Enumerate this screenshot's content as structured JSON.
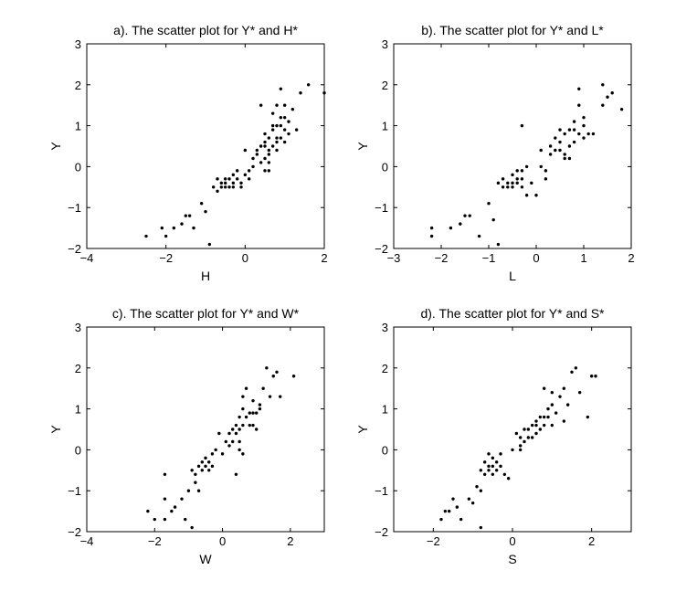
{
  "chart_data": [
    {
      "type": "scatter",
      "title": "a). The scatter plot for Y* and H*",
      "xlabel": "H",
      "ylabel": "Y",
      "xlim": [
        -4,
        2
      ],
      "ylim": [
        -2,
        3
      ],
      "xticks": [
        -4,
        -2,
        0,
        2
      ],
      "yticks": [
        -2,
        -1,
        0,
        1,
        2,
        3
      ],
      "grid": false,
      "x": [
        -2.5,
        -2.1,
        -2.0,
        -1.8,
        -1.6,
        -1.5,
        -1.4,
        -1.3,
        -1.1,
        -1.0,
        -0.9,
        -0.8,
        -0.7,
        -0.7,
        -0.6,
        -0.6,
        -0.5,
        -0.5,
        -0.5,
        -0.4,
        -0.4,
        -0.3,
        -0.3,
        -0.3,
        -0.2,
        -0.2,
        -0.1,
        -0.1,
        0.0,
        0.0,
        0.1,
        0.1,
        0.2,
        0.2,
        0.3,
        0.4,
        0.4,
        0.5,
        0.5,
        0.5,
        0.6,
        0.6,
        0.6,
        0.7,
        0.7,
        0.8,
        0.8,
        0.8,
        0.9,
        0.9,
        1.0,
        1.0,
        1.1,
        1.1,
        1.2,
        1.3,
        1.4,
        1.6,
        2.0,
        0.5,
        0.6,
        0.7,
        0.8,
        0.9,
        1.0,
        0.3,
        0.4,
        0.5,
        0.6,
        0.7,
        0.8,
        0.9,
        1.0
      ],
      "y": [
        -1.7,
        -1.5,
        -1.7,
        -1.5,
        -1.4,
        -1.2,
        -1.2,
        -1.5,
        -0.9,
        -1.1,
        -1.9,
        -0.5,
        -0.6,
        -0.3,
        -0.4,
        -0.5,
        -0.4,
        -0.3,
        -0.5,
        -0.3,
        -0.5,
        -0.4,
        -0.2,
        -0.5,
        -0.3,
        -0.1,
        -0.5,
        -0.4,
        -0.2,
        0.4,
        -0.1,
        -0.3,
        0.0,
        0.2,
        0.4,
        0.1,
        0.5,
        0.2,
        0.5,
        0.8,
        0.4,
        0.7,
        -0.1,
        0.5,
        1.0,
        0.7,
        1.0,
        0.4,
        1.0,
        0.7,
        1.2,
        0.9,
        0.8,
        1.1,
        1.4,
        0.9,
        1.8,
        2.0,
        1.8,
        -0.1,
        0.1,
        1.3,
        1.5,
        1.9,
        1.5,
        0.3,
        1.5,
        0.6,
        0.3,
        0.9,
        0.6,
        1.2,
        0.6
      ]
    },
    {
      "type": "scatter",
      "title": "b). The scatter plot for Y* and L*",
      "xlabel": "L",
      "ylabel": "Y",
      "xlim": [
        -3,
        2
      ],
      "ylim": [
        -2,
        3
      ],
      "xticks": [
        -3,
        -2,
        -1,
        0,
        1,
        2
      ],
      "yticks": [
        -2,
        -1,
        0,
        1,
        2,
        3
      ],
      "grid": false,
      "x": [
        -2.2,
        -2.2,
        -1.8,
        -1.6,
        -1.5,
        -1.4,
        -1.2,
        -1.0,
        -0.9,
        -0.8,
        -0.8,
        -0.7,
        -0.7,
        -0.6,
        -0.6,
        -0.5,
        -0.5,
        -0.5,
        -0.4,
        -0.4,
        -0.4,
        -0.3,
        -0.3,
        -0.3,
        -0.2,
        -0.2,
        -0.1,
        0.0,
        0.1,
        0.1,
        0.2,
        0.3,
        0.3,
        0.4,
        0.4,
        0.5,
        0.5,
        0.5,
        0.6,
        0.6,
        0.7,
        0.7,
        0.7,
        0.8,
        0.8,
        0.9,
        0.9,
        1.0,
        1.0,
        1.1,
        1.2,
        1.4,
        1.4,
        1.5,
        1.6,
        1.8,
        -0.3,
        0.2,
        0.6,
        0.8,
        0.9,
        1.0
      ],
      "y": [
        -1.7,
        -1.5,
        -1.5,
        -1.4,
        -1.2,
        -1.2,
        -1.7,
        -0.9,
        -1.3,
        -0.4,
        -1.9,
        -0.5,
        -0.3,
        -0.4,
        -0.5,
        -0.4,
        -0.2,
        -0.5,
        -0.4,
        -0.3,
        -0.1,
        -0.5,
        -0.3,
        -0.1,
        -0.7,
        0.0,
        -0.4,
        -0.7,
        0.0,
        0.4,
        -0.1,
        0.5,
        0.3,
        0.7,
        0.4,
        0.9,
        0.6,
        0.4,
        0.3,
        0.8,
        0.5,
        0.9,
        0.2,
        1.1,
        0.6,
        1.9,
        0.8,
        1.2,
        0.7,
        0.8,
        0.8,
        2.0,
        1.5,
        1.7,
        1.8,
        1.4,
        1.0,
        -0.3,
        0.2,
        0.9,
        1.5,
        1.0
      ]
    },
    {
      "type": "scatter",
      "title": "c). The scatter plot for Y* and W*",
      "xlabel": "W",
      "ylabel": "Y",
      "xlim": [
        -4,
        3
      ],
      "ylim": [
        -2,
        3
      ],
      "xticks": [
        -4,
        -2,
        0,
        2
      ],
      "yticks": [
        -2,
        -1,
        0,
        1,
        2,
        3
      ],
      "grid": false,
      "x": [
        -2.2,
        -2.0,
        -1.7,
        -1.7,
        -1.5,
        -1.4,
        -1.2,
        -1.1,
        -1.0,
        -0.9,
        -0.9,
        -0.8,
        -0.8,
        -0.7,
        -0.7,
        -0.6,
        -0.6,
        -0.5,
        -0.5,
        -0.4,
        -0.4,
        -0.3,
        -0.3,
        -0.2,
        -0.1,
        0.0,
        0.1,
        0.2,
        0.2,
        0.3,
        0.3,
        0.4,
        0.4,
        0.5,
        0.5,
        0.5,
        0.6,
        0.6,
        0.6,
        0.7,
        0.7,
        0.8,
        0.8,
        0.9,
        0.9,
        1.0,
        1.0,
        1.1,
        1.2,
        1.3,
        1.4,
        1.5,
        1.6,
        1.7,
        2.1,
        -1.7,
        0.4,
        0.5,
        0.6,
        0.9,
        1.1
      ],
      "y": [
        -1.5,
        -1.7,
        -1.2,
        -1.7,
        -1.5,
        -1.4,
        -1.2,
        -1.7,
        -1.0,
        -0.5,
        -1.9,
        -0.6,
        -0.8,
        -0.4,
        -1.0,
        -0.5,
        -0.3,
        -0.4,
        -0.2,
        -0.5,
        -0.3,
        -0.4,
        -0.1,
        0.0,
        0.4,
        -0.1,
        0.2,
        0.4,
        0.1,
        0.5,
        0.2,
        0.6,
        0.4,
        0.8,
        0.5,
        0.2,
        1.0,
        0.6,
        -0.1,
        1.5,
        0.8,
        0.9,
        0.6,
        1.2,
        0.9,
        0.9,
        0.5,
        1.0,
        1.5,
        2.0,
        1.3,
        1.8,
        1.9,
        1.3,
        1.8,
        -0.6,
        -0.6,
        0.0,
        1.3,
        0.6,
        1.1
      ]
    },
    {
      "type": "scatter",
      "title": "d). The scatter plot for Y* and S*",
      "xlabel": "S",
      "ylabel": "Y",
      "xlim": [
        -3,
        3
      ],
      "ylim": [
        -2,
        3
      ],
      "xticks": [
        -2,
        0,
        2
      ],
      "yticks": [
        -2,
        -1,
        0,
        1,
        2,
        3
      ],
      "grid": false,
      "x": [
        -1.8,
        -1.7,
        -1.6,
        -1.5,
        -1.4,
        -1.3,
        -1.1,
        -1.0,
        -0.9,
        -0.8,
        -0.8,
        -0.7,
        -0.7,
        -0.6,
        -0.6,
        -0.5,
        -0.5,
        -0.5,
        -0.4,
        -0.4,
        -0.3,
        -0.3,
        -0.2,
        -0.1,
        0.0,
        0.1,
        0.2,
        0.2,
        0.3,
        0.3,
        0.4,
        0.5,
        0.5,
        0.6,
        0.6,
        0.7,
        0.7,
        0.8,
        0.8,
        0.9,
        0.9,
        1.0,
        1.0,
        1.1,
        1.2,
        1.3,
        1.4,
        1.5,
        1.6,
        1.7,
        1.9,
        2.0,
        2.1,
        -0.8,
        -0.6,
        0.2,
        0.4,
        0.6,
        0.8,
        1.0,
        1.3
      ],
      "y": [
        -1.7,
        -1.5,
        -1.5,
        -1.2,
        -1.4,
        -1.7,
        -1.2,
        -1.3,
        -0.9,
        -1.0,
        -0.5,
        -0.6,
        -0.3,
        -0.4,
        -0.5,
        -0.2,
        -0.4,
        -0.6,
        -0.3,
        -0.5,
        -0.4,
        -0.1,
        -0.6,
        -0.7,
        0.0,
        0.4,
        0.0,
        0.3,
        0.2,
        0.5,
        0.5,
        0.3,
        0.6,
        0.4,
        0.7,
        0.5,
        0.8,
        1.5,
        0.6,
        1.0,
        0.8,
        0.6,
        1.1,
        0.9,
        1.3,
        0.7,
        1.1,
        1.9,
        2.0,
        1.4,
        0.8,
        1.8,
        1.8,
        -1.9,
        -0.1,
        0.1,
        0.3,
        0.6,
        0.8,
        1.4,
        1.5
      ]
    }
  ]
}
